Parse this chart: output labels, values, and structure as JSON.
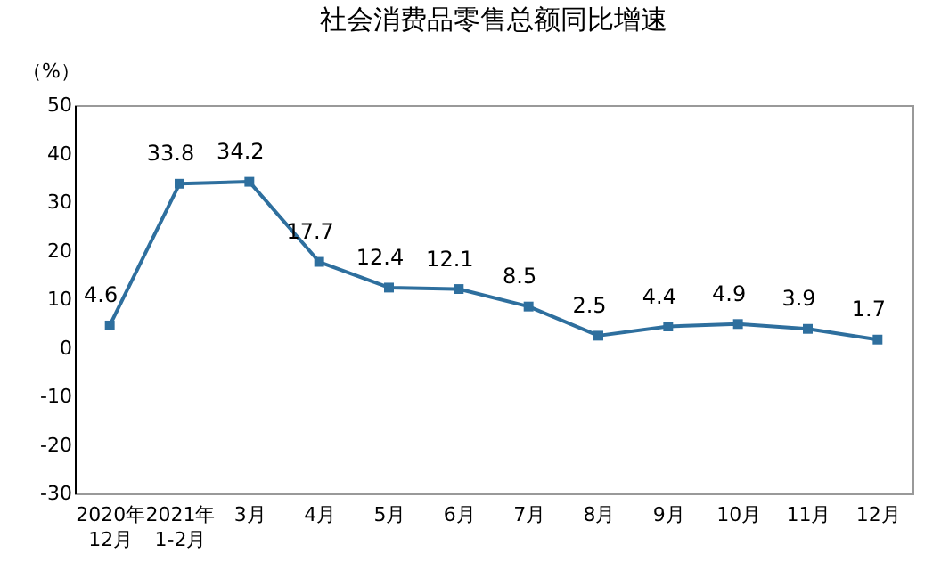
{
  "chart_data": {
    "type": "line",
    "title": "社会消费品零售总额同比增速",
    "ylabel": "（%）",
    "categories": [
      "2020年\n12月",
      "2021年\n1-2月",
      "3月",
      "4月",
      "5月",
      "6月",
      "7月",
      "8月",
      "9月",
      "10月",
      "11月",
      "12月"
    ],
    "series": [
      {
        "color": "#2e6f9e",
        "values": [
          4.6,
          33.8,
          34.2,
          17.7,
          12.4,
          12.1,
          8.5,
          2.5,
          4.4,
          4.9,
          3.9,
          1.7
        ]
      }
    ],
    "ylim": [
      -30,
      50
    ],
    "yticks": [
      -30,
      -20,
      -10,
      0,
      10,
      20,
      30,
      40,
      50
    ],
    "grid": false,
    "legend": false,
    "marker": "square",
    "line_style": "solid",
    "data_labels": true
  }
}
